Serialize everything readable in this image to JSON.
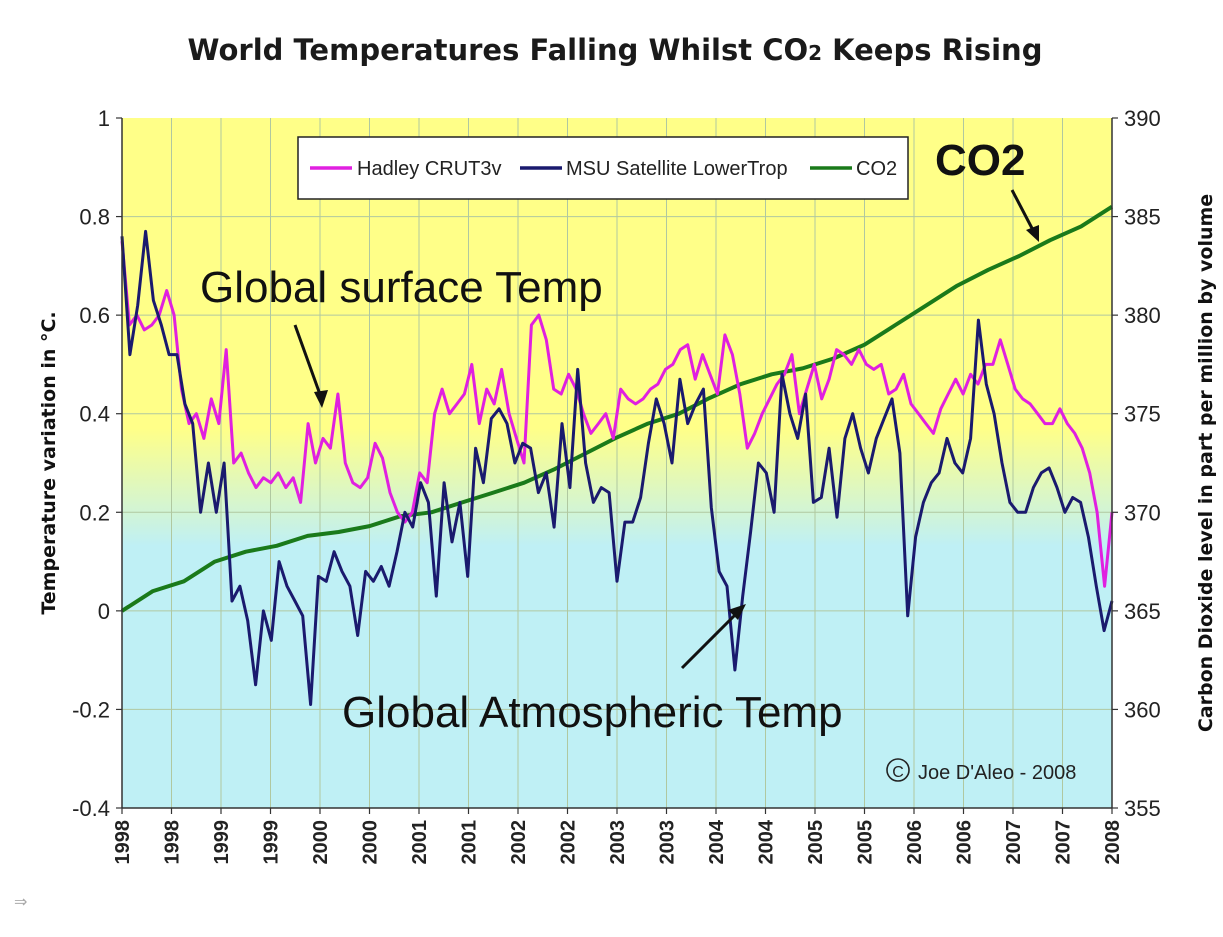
{
  "chart_data": {
    "type": "line",
    "title_parts": {
      "main": "World Temperatures Falling Whilst CO",
      "sub": "2",
      "rest": " Keeps Rising"
    },
    "ylabel_left": "Temperature variation in °C.",
    "ylabel_right": "Carbon Dioxide level in part per million by volume",
    "ylim_left": [
      -0.4,
      1.0
    ],
    "ylim_right": [
      355,
      390
    ],
    "yticks_left": [
      "-0.4",
      "-0.2",
      "0",
      "0.2",
      "0.4",
      "0.6",
      "0.8",
      "1"
    ],
    "yticks_left_values": [
      -0.4,
      -0.2,
      0,
      0.2,
      0.4,
      0.6,
      0.8,
      1.0
    ],
    "yticks_right": [
      "355",
      "360",
      "365",
      "370",
      "375",
      "380",
      "385",
      "390"
    ],
    "yticks_right_values": [
      355,
      360,
      365,
      370,
      375,
      380,
      385,
      390
    ],
    "xticks": [
      "1998",
      "1998",
      "1999",
      "1999",
      "2000",
      "2000",
      "2001",
      "2001",
      "2002",
      "2002",
      "2003",
      "2003",
      "2004",
      "2004",
      "2005",
      "2005",
      "2006",
      "2006",
      "2007",
      "2007",
      "2008"
    ],
    "legend": [
      "Hadley CRUT3v",
      "MSU Satellite LowerTrop",
      "CO2"
    ],
    "series": [
      {
        "name": "Hadley CRUT3v",
        "axis": "left",
        "color": "#e020e0",
        "values": [
          0.75,
          0.58,
          0.6,
          0.57,
          0.58,
          0.6,
          0.65,
          0.6,
          0.45,
          0.38,
          0.4,
          0.35,
          0.43,
          0.38,
          0.53,
          0.3,
          0.32,
          0.28,
          0.25,
          0.27,
          0.26,
          0.28,
          0.25,
          0.27,
          0.22,
          0.38,
          0.3,
          0.35,
          0.33,
          0.44,
          0.3,
          0.26,
          0.25,
          0.27,
          0.34,
          0.31,
          0.24,
          0.2,
          0.18,
          0.2,
          0.28,
          0.26,
          0.4,
          0.45,
          0.4,
          0.42,
          0.44,
          0.5,
          0.38,
          0.45,
          0.42,
          0.49,
          0.4,
          0.35,
          0.3,
          0.58,
          0.6,
          0.55,
          0.45,
          0.44,
          0.48,
          0.45,
          0.4,
          0.36,
          0.38,
          0.4,
          0.35,
          0.45,
          0.43,
          0.42,
          0.43,
          0.45,
          0.46,
          0.49,
          0.5,
          0.53,
          0.54,
          0.47,
          0.52,
          0.48,
          0.44,
          0.56,
          0.52,
          0.44,
          0.33,
          0.36,
          0.4,
          0.43,
          0.46,
          0.48,
          0.52,
          0.4,
          0.45,
          0.5,
          0.43,
          0.47,
          0.53,
          0.52,
          0.5,
          0.53,
          0.5,
          0.49,
          0.5,
          0.44,
          0.45,
          0.48,
          0.42,
          0.4,
          0.38,
          0.36,
          0.41,
          0.44,
          0.47,
          0.44,
          0.48,
          0.46,
          0.5,
          0.5,
          0.55,
          0.5,
          0.45,
          0.43,
          0.42,
          0.4,
          0.38,
          0.38,
          0.41,
          0.38,
          0.36,
          0.33,
          0.28,
          0.2,
          0.05,
          0.2
        ]
      },
      {
        "name": "MSU Satellite LowerTrop",
        "axis": "left",
        "color": "#1a1a6e",
        "values": [
          0.76,
          0.52,
          0.62,
          0.77,
          0.63,
          0.58,
          0.52,
          0.52,
          0.42,
          0.38,
          0.2,
          0.3,
          0.2,
          0.3,
          0.02,
          0.05,
          -0.02,
          -0.15,
          0.0,
          -0.06,
          0.1,
          0.05,
          0.02,
          -0.01,
          -0.19,
          0.07,
          0.06,
          0.12,
          0.08,
          0.05,
          -0.05,
          0.08,
          0.06,
          0.09,
          0.05,
          0.12,
          0.2,
          0.17,
          0.26,
          0.22,
          0.03,
          0.26,
          0.14,
          0.22,
          0.07,
          0.33,
          0.26,
          0.39,
          0.41,
          0.38,
          0.3,
          0.34,
          0.33,
          0.24,
          0.28,
          0.17,
          0.38,
          0.25,
          0.49,
          0.3,
          0.22,
          0.25,
          0.24,
          0.06,
          0.18,
          0.18,
          0.23,
          0.34,
          0.43,
          0.38,
          0.3,
          0.47,
          0.38,
          0.42,
          0.45,
          0.21,
          0.08,
          0.05,
          -0.12,
          0.03,
          0.16,
          0.3,
          0.28,
          0.2,
          0.48,
          0.4,
          0.35,
          0.44,
          0.22,
          0.23,
          0.33,
          0.19,
          0.35,
          0.4,
          0.33,
          0.28,
          0.35,
          0.39,
          0.43,
          0.32,
          -0.01,
          0.15,
          0.22,
          0.26,
          0.28,
          0.35,
          0.3,
          0.28,
          0.35,
          0.59,
          0.46,
          0.4,
          0.3,
          0.22,
          0.2,
          0.2,
          0.25,
          0.28,
          0.29,
          0.25,
          0.2,
          0.23,
          0.22,
          0.15,
          0.05,
          -0.04,
          0.02
        ]
      },
      {
        "name": "CO2",
        "axis": "right",
        "color": "#1a7a1a",
        "values": [
          365.0,
          366.0,
          366.5,
          367.5,
          368.0,
          368.3,
          368.8,
          369.0,
          369.3,
          369.8,
          370.0,
          370.5,
          371.0,
          371.5,
          372.2,
          373.0,
          373.8,
          374.5,
          375.0,
          375.8,
          376.5,
          377.0,
          377.3,
          377.8,
          378.5,
          379.5,
          380.5,
          381.5,
          382.3,
          383.0,
          383.8,
          384.5,
          385.5
        ]
      }
    ],
    "annotations": [
      "Global surface Temp",
      "Global Atmospheric Temp",
      "CO2"
    ],
    "credit": "Joe D'Aleo - 2008"
  },
  "colors": {
    "plot_top": "#ffff88",
    "plot_bottom": "#bff0f5",
    "grid": "#b0c8a0",
    "axis": "#333333"
  }
}
